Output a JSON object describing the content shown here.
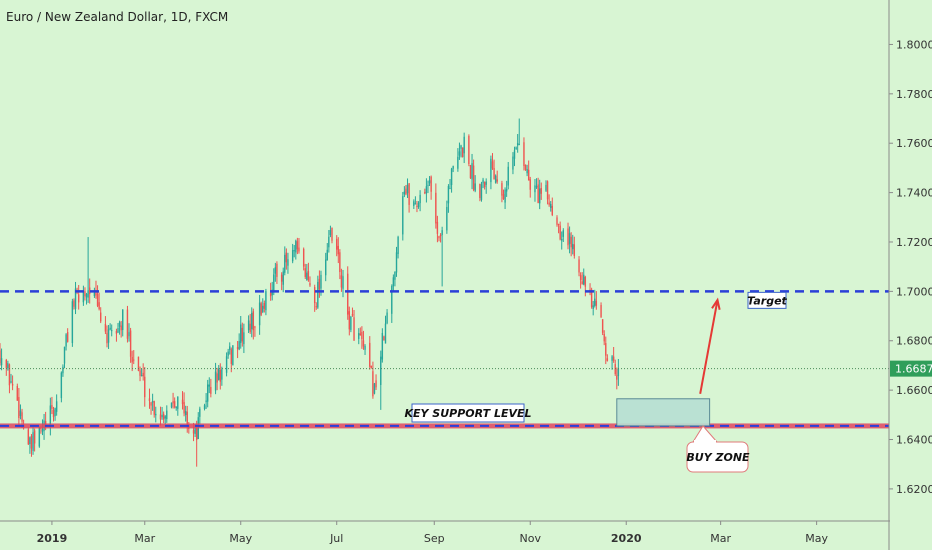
{
  "header": {
    "title": "Euro / New Zealand Dollar, 1D, FXCM"
  },
  "colors": {
    "background": "#d8f5d3",
    "up": "#26a69a",
    "down": "#ef5350",
    "dashed_line": "#2b3fd8",
    "support_line": "#e0455f",
    "buy_zone_fill": "#b7dfd3",
    "arrow": "#e53935",
    "price_tag": "#2f9e5a"
  },
  "chart_data": {
    "type": "candlestick",
    "symbol": "Euro / New Zealand Dollar",
    "timeframe": "1D",
    "source": "FXCM",
    "ylim": [
      1.607,
      1.818
    ],
    "y_ticks": [
      "1.62000",
      "1.64000",
      "1.66000",
      "1.68000",
      "1.70000",
      "1.72000",
      "1.74000",
      "1.76000",
      "1.78000",
      "1.80000"
    ],
    "x_ticks": [
      {
        "label": "2019",
        "date": "2019-01-01",
        "year": true
      },
      {
        "label": "Mar",
        "date": "2019-03-01"
      },
      {
        "label": "May",
        "date": "2019-05-01"
      },
      {
        "label": "Jul",
        "date": "2019-07-01"
      },
      {
        "label": "Sep",
        "date": "2019-09-01"
      },
      {
        "label": "Nov",
        "date": "2019-11-01"
      },
      {
        "label": "2020",
        "date": "2020-01-01",
        "year": true
      },
      {
        "label": "Mar",
        "date": "2020-03-01"
      },
      {
        "label": "May",
        "date": "2020-05-01"
      }
    ],
    "x_range": [
      "2018-11-29",
      "2020-06-16"
    ],
    "last_price": "1.66871",
    "last_price_value": 1.66871,
    "path": [
      [
        "2018-11-29",
        1.676
      ],
      [
        "2018-12-10",
        1.656
      ],
      [
        "2018-12-18",
        1.636
      ],
      [
        "2019-01-03",
        1.652
      ],
      [
        "2019-01-14",
        1.695
      ],
      [
        "2019-01-25",
        1.702
      ],
      [
        "2019-02-06",
        1.68
      ],
      [
        "2019-02-15",
        1.688
      ],
      [
        "2019-02-26",
        1.666
      ],
      [
        "2019-03-05",
        1.655
      ],
      [
        "2019-03-12",
        1.65
      ],
      [
        "2019-03-20",
        1.658
      ],
      [
        "2019-03-28",
        1.648
      ],
      [
        "2019-04-02",
        1.641
      ],
      [
        "2019-04-10",
        1.66
      ],
      [
        "2019-04-20",
        1.668
      ],
      [
        "2019-05-01",
        1.682
      ],
      [
        "2019-05-12",
        1.69
      ],
      [
        "2019-05-22",
        1.705
      ],
      [
        "2019-06-05",
        1.716
      ],
      [
        "2019-06-12",
        1.706
      ],
      [
        "2019-06-18",
        1.698
      ],
      [
        "2019-06-26",
        1.722
      ],
      [
        "2019-07-01",
        1.716
      ],
      [
        "2019-07-08",
        1.69
      ],
      [
        "2019-07-16",
        1.68
      ],
      [
        "2019-07-25",
        1.66
      ],
      [
        "2019-08-05",
        1.7
      ],
      [
        "2019-08-12",
        1.742
      ],
      [
        "2019-08-20",
        1.735
      ],
      [
        "2019-08-28",
        1.745
      ],
      [
        "2019-09-05",
        1.72
      ],
      [
        "2019-09-10",
        1.743
      ],
      [
        "2019-09-20",
        1.76
      ],
      [
        "2019-09-28",
        1.74
      ],
      [
        "2019-10-07",
        1.752
      ],
      [
        "2019-10-15",
        1.742
      ],
      [
        "2019-10-25",
        1.762
      ],
      [
        "2019-11-01",
        1.742
      ],
      [
        "2019-11-12",
        1.738
      ],
      [
        "2019-11-20",
        1.726
      ],
      [
        "2019-12-01",
        1.715
      ],
      [
        "2019-12-08",
        1.696
      ],
      [
        "2019-12-15",
        1.69
      ],
      [
        "2019-12-22",
        1.67
      ],
      [
        "2019-12-27",
        1.666
      ]
    ],
    "wick_extremes": [
      {
        "date": "2019-01-24",
        "high": 1.722
      },
      {
        "date": "2019-10-26",
        "high": 1.77
      },
      {
        "date": "2019-04-03",
        "low": 1.629
      },
      {
        "date": "2018-12-19",
        "low": 1.633
      },
      {
        "date": "2019-07-28",
        "low": 1.652
      },
      {
        "date": "2019-09-06",
        "low": 1.702
      }
    ],
    "levels": [
      {
        "name": "Target",
        "price": 1.7,
        "style": "dashed"
      },
      {
        "name": "KEY SUPPORT LEVEL",
        "price": 1.6455,
        "style": "dashed-band"
      }
    ],
    "annotations": {
      "target_label": "Target",
      "support_label": "KEY SUPPORT LEVEL",
      "buy_zone_label": "BUY ZONE",
      "buy_zone": {
        "start": "2019-12-26",
        "end": "2020-02-23",
        "price_low": 1.6455,
        "price_high": 1.6565
      },
      "arrow": {
        "from_date": "2020-02-17",
        "from_price": 1.6585,
        "to_date": "2020-02-28",
        "to_price": 1.6965
      }
    }
  }
}
